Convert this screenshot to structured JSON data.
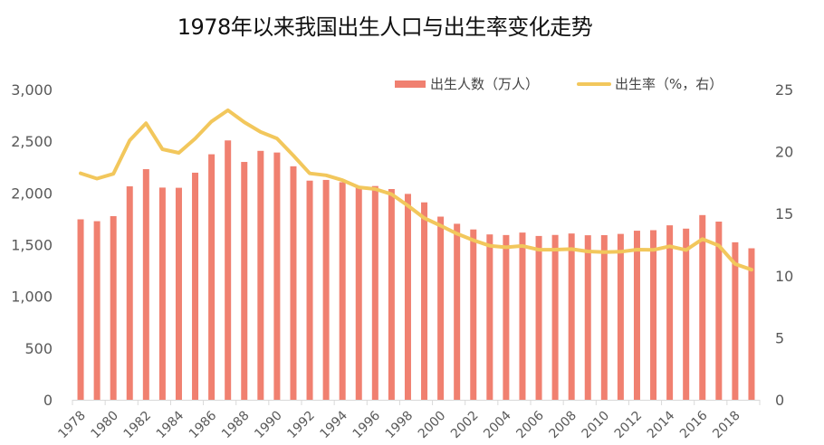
{
  "chart_data": {
    "type": "bar+line",
    "title": "1978年以来我国出生人口与出生率变化走势",
    "xlabel": "",
    "ylabel_left": "出生人数（万人）",
    "ylabel_right": "出生率（%，右）",
    "ylim_left": [
      0,
      3000
    ],
    "ylim_right": [
      0,
      25
    ],
    "yticks_left": [
      "0",
      "500",
      "1,000",
      "1,500",
      "2,000",
      "2,500",
      "3,000"
    ],
    "yticks_right": [
      "0",
      "5",
      "10",
      "15",
      "20",
      "25"
    ],
    "xtick_labels": [
      "1978",
      "1980",
      "1982",
      "1984",
      "1986",
      "1988",
      "1990",
      "1992",
      "1994",
      "1996",
      "1998",
      "2000",
      "2002",
      "2004",
      "2006",
      "2008",
      "2010",
      "2012",
      "2014",
      "2016",
      "2018"
    ],
    "grid": false,
    "legend_position": "top-right",
    "categories": [
      1978,
      1979,
      1980,
      1981,
      1982,
      1983,
      1984,
      1985,
      1986,
      1987,
      1988,
      1989,
      1990,
      1991,
      1992,
      1993,
      1994,
      1995,
      1996,
      1997,
      1998,
      1999,
      2000,
      2001,
      2002,
      2003,
      2004,
      2005,
      2006,
      2007,
      2008,
      2009,
      2010,
      2011,
      2012,
      2013,
      2014,
      2015,
      2016,
      2017,
      2018,
      2019
    ],
    "series": [
      {
        "name": "出生人数（万人）",
        "type": "bar",
        "axis": "left",
        "color": "#F08070",
        "values": [
          1745,
          1727,
          1776,
          2064,
          2230,
          2052,
          2050,
          2196,
          2374,
          2508,
          2300,
          2407,
          2391,
          2258,
          2119,
          2126,
          2104,
          2063,
          2067,
          2038,
          1991,
          1909,
          1771,
          1702,
          1647,
          1599,
          1593,
          1617,
          1584,
          1594,
          1608,
          1591,
          1592,
          1604,
          1635,
          1640,
          1687,
          1655,
          1786,
          1723,
          1523,
          1465
        ]
      },
      {
        "name": "出生率（%，右）",
        "type": "line",
        "axis": "right",
        "color": "#F2C75C",
        "values": [
          18.25,
          17.82,
          18.21,
          20.91,
          22.28,
          20.19,
          19.9,
          21.04,
          22.43,
          23.33,
          22.37,
          21.58,
          21.06,
          19.68,
          18.24,
          18.09,
          17.7,
          17.12,
          16.98,
          16.57,
          15.64,
          14.64,
          14.03,
          13.38,
          12.86,
          12.41,
          12.29,
          12.4,
          12.09,
          12.1,
          12.14,
          11.95,
          11.9,
          11.93,
          12.1,
          12.08,
          12.37,
          12.07,
          12.95,
          12.43,
          10.94,
          10.48
        ]
      }
    ]
  },
  "legend": {
    "bar_label": "出生人数（万人）",
    "line_label": "出生率（%，右）"
  },
  "colors": {
    "bar": "#F08070",
    "line": "#F2C75C",
    "axis": "#D9D9D9",
    "tick_text": "#595959"
  }
}
